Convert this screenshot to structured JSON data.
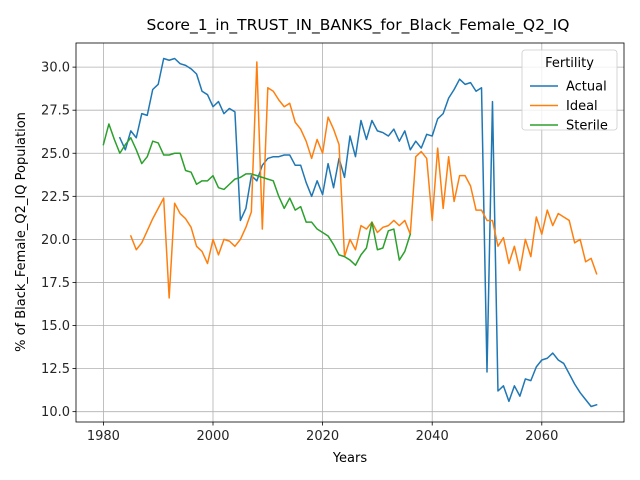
{
  "chart_data": {
    "type": "line",
    "title": "Score_1_in_TRUST_IN_BANKS_for_Black_Female_Q2_IQ",
    "xlabel": "Years",
    "ylabel": "% of Black_Female_Q2_IQ Population",
    "xlim": [
      1975,
      2075
    ],
    "ylim": [
      9.4,
      31.4
    ],
    "x_ticks": [
      1980,
      2000,
      2020,
      2040,
      2060
    ],
    "y_ticks": [
      10.0,
      12.5,
      15.0,
      17.5,
      20.0,
      22.5,
      25.0,
      27.5,
      30.0
    ],
    "grid": true,
    "legend": {
      "title": "Fertility",
      "placement": "top-right"
    },
    "series": [
      {
        "name": "Actual",
        "color": "#1f77b4",
        "points": [
          [
            1983,
            25.9
          ],
          [
            1984,
            25.2
          ],
          [
            1985,
            26.3
          ],
          [
            1986,
            25.9
          ],
          [
            1987,
            27.3
          ],
          [
            1988,
            27.2
          ],
          [
            1989,
            28.7
          ],
          [
            1990,
            29.0
          ],
          [
            1991,
            30.5
          ],
          [
            1992,
            30.4
          ],
          [
            1993,
            30.5
          ],
          [
            1994,
            30.2
          ],
          [
            1995,
            30.1
          ],
          [
            1996,
            29.9
          ],
          [
            1997,
            29.6
          ],
          [
            1998,
            28.6
          ],
          [
            1999,
            28.4
          ],
          [
            2000,
            27.7
          ],
          [
            2001,
            28.0
          ],
          [
            2002,
            27.3
          ],
          [
            2003,
            27.6
          ],
          [
            2004,
            27.4
          ],
          [
            2005,
            21.1
          ],
          [
            2006,
            21.8
          ],
          [
            2007,
            23.7
          ],
          [
            2008,
            23.4
          ],
          [
            2009,
            24.3
          ],
          [
            2010,
            24.7
          ],
          [
            2011,
            24.8
          ],
          [
            2012,
            24.8
          ],
          [
            2013,
            24.9
          ],
          [
            2014,
            24.9
          ],
          [
            2015,
            24.3
          ],
          [
            2016,
            24.3
          ],
          [
            2017,
            23.3
          ],
          [
            2018,
            22.5
          ],
          [
            2019,
            23.4
          ],
          [
            2020,
            22.6
          ],
          [
            2021,
            24.4
          ],
          [
            2022,
            23.0
          ],
          [
            2023,
            24.7
          ],
          [
            2024,
            23.6
          ],
          [
            2025,
            26.0
          ],
          [
            2026,
            24.8
          ],
          [
            2027,
            26.9
          ],
          [
            2028,
            25.8
          ],
          [
            2029,
            26.9
          ],
          [
            2030,
            26.3
          ],
          [
            2031,
            26.2
          ],
          [
            2032,
            26.0
          ],
          [
            2033,
            26.4
          ],
          [
            2034,
            25.7
          ],
          [
            2035,
            26.3
          ],
          [
            2036,
            25.2
          ],
          [
            2037,
            25.7
          ],
          [
            2038,
            25.3
          ],
          [
            2039,
            26.1
          ],
          [
            2040,
            26.0
          ],
          [
            2041,
            27.0
          ],
          [
            2042,
            27.3
          ],
          [
            2043,
            28.2
          ],
          [
            2044,
            28.7
          ],
          [
            2045,
            29.3
          ],
          [
            2046,
            29.0
          ],
          [
            2047,
            29.1
          ],
          [
            2048,
            28.6
          ],
          [
            2049,
            28.8
          ],
          [
            2050,
            12.3
          ],
          [
            2051,
            28.0
          ],
          [
            2052,
            11.2
          ],
          [
            2053,
            11.5
          ],
          [
            2054,
            10.6
          ],
          [
            2055,
            11.5
          ],
          [
            2056,
            10.9
          ],
          [
            2057,
            11.9
          ],
          [
            2058,
            11.8
          ],
          [
            2059,
            12.6
          ],
          [
            2060,
            13.0
          ],
          [
            2061,
            13.1
          ],
          [
            2062,
            13.4
          ],
          [
            2063,
            13.0
          ],
          [
            2064,
            12.8
          ],
          [
            2065,
            12.2
          ],
          [
            2066,
            11.6
          ],
          [
            2067,
            11.1
          ],
          [
            2068,
            10.7
          ],
          [
            2069,
            10.3
          ],
          [
            2070,
            10.4
          ]
        ]
      },
      {
        "name": "Ideal",
        "color": "#ff7f0e",
        "points": [
          [
            1985,
            20.2
          ],
          [
            1986,
            19.4
          ],
          [
            1987,
            19.8
          ],
          [
            1988,
            20.5
          ],
          [
            1989,
            21.2
          ],
          [
            1990,
            21.8
          ],
          [
            1991,
            22.4
          ],
          [
            1992,
            16.6
          ],
          [
            1993,
            22.1
          ],
          [
            1994,
            21.5
          ],
          [
            1995,
            21.2
          ],
          [
            1996,
            20.7
          ],
          [
            1997,
            19.6
          ],
          [
            1998,
            19.3
          ],
          [
            1999,
            18.6
          ],
          [
            2000,
            20.0
          ],
          [
            2001,
            19.1
          ],
          [
            2002,
            20.0
          ],
          [
            2003,
            19.9
          ],
          [
            2004,
            19.6
          ],
          [
            2005,
            20.0
          ],
          [
            2006,
            20.7
          ],
          [
            2007,
            21.6
          ],
          [
            2008,
            30.3
          ],
          [
            2009,
            20.6
          ],
          [
            2010,
            28.8
          ],
          [
            2011,
            28.6
          ],
          [
            2012,
            28.1
          ],
          [
            2013,
            27.7
          ],
          [
            2014,
            27.9
          ],
          [
            2015,
            26.8
          ],
          [
            2016,
            26.4
          ],
          [
            2017,
            25.7
          ],
          [
            2018,
            24.7
          ],
          [
            2019,
            25.8
          ],
          [
            2020,
            25.0
          ],
          [
            2021,
            27.1
          ],
          [
            2022,
            26.4
          ],
          [
            2023,
            25.5
          ],
          [
            2024,
            19.0
          ],
          [
            2025,
            20.0
          ],
          [
            2026,
            19.4
          ],
          [
            2027,
            20.8
          ],
          [
            2028,
            20.6
          ],
          [
            2029,
            21.0
          ],
          [
            2030,
            20.4
          ],
          [
            2031,
            20.7
          ],
          [
            2032,
            20.8
          ],
          [
            2033,
            21.1
          ],
          [
            2034,
            20.8
          ],
          [
            2035,
            21.1
          ],
          [
            2036,
            20.3
          ],
          [
            2037,
            24.8
          ],
          [
            2038,
            25.1
          ],
          [
            2039,
            24.7
          ],
          [
            2040,
            21.1
          ],
          [
            2041,
            25.3
          ],
          [
            2042,
            21.8
          ],
          [
            2043,
            24.8
          ],
          [
            2044,
            22.2
          ],
          [
            2045,
            23.7
          ],
          [
            2046,
            23.7
          ],
          [
            2047,
            23.1
          ],
          [
            2048,
            21.7
          ],
          [
            2049,
            21.7
          ],
          [
            2050,
            21.1
          ],
          [
            2051,
            21.1
          ],
          [
            2052,
            19.6
          ],
          [
            2053,
            20.1
          ],
          [
            2054,
            18.6
          ],
          [
            2055,
            19.6
          ],
          [
            2056,
            18.2
          ],
          [
            2057,
            20.0
          ],
          [
            2058,
            19.0
          ],
          [
            2059,
            21.3
          ],
          [
            2060,
            20.3
          ],
          [
            2061,
            21.7
          ],
          [
            2062,
            20.8
          ],
          [
            2063,
            21.5
          ],
          [
            2064,
            21.3
          ],
          [
            2065,
            21.1
          ],
          [
            2066,
            19.8
          ],
          [
            2067,
            20.0
          ],
          [
            2068,
            18.7
          ],
          [
            2069,
            18.9
          ],
          [
            2070,
            18.0
          ]
        ]
      },
      {
        "name": "Sterile",
        "color": "#2ca02c",
        "points": [
          [
            1980,
            25.5
          ],
          [
            1981,
            26.7
          ],
          [
            1982,
            25.8
          ],
          [
            1983,
            25.0
          ],
          [
            1984,
            25.5
          ],
          [
            1985,
            25.9
          ],
          [
            1986,
            25.2
          ],
          [
            1987,
            24.4
          ],
          [
            1988,
            24.8
          ],
          [
            1989,
            25.7
          ],
          [
            1990,
            25.6
          ],
          [
            1991,
            24.9
          ],
          [
            1992,
            24.9
          ],
          [
            1993,
            25.0
          ],
          [
            1994,
            25.0
          ],
          [
            1995,
            24.0
          ],
          [
            1996,
            23.9
          ],
          [
            1997,
            23.2
          ],
          [
            1998,
            23.4
          ],
          [
            1999,
            23.4
          ],
          [
            2000,
            23.7
          ],
          [
            2001,
            23.0
          ],
          [
            2002,
            22.9
          ],
          [
            2003,
            23.2
          ],
          [
            2004,
            23.5
          ],
          [
            2005,
            23.6
          ],
          [
            2006,
            23.8
          ],
          [
            2007,
            23.8
          ],
          [
            2008,
            23.7
          ],
          [
            2009,
            23.6
          ],
          [
            2010,
            23.5
          ],
          [
            2011,
            23.4
          ],
          [
            2012,
            22.5
          ],
          [
            2013,
            21.8
          ],
          [
            2014,
            22.4
          ],
          [
            2015,
            21.7
          ],
          [
            2016,
            21.9
          ],
          [
            2017,
            21.0
          ],
          [
            2018,
            21.0
          ],
          [
            2019,
            20.6
          ],
          [
            2020,
            20.4
          ],
          [
            2021,
            20.2
          ],
          [
            2022,
            19.7
          ],
          [
            2023,
            19.1
          ],
          [
            2024,
            19.0
          ],
          [
            2025,
            18.8
          ],
          [
            2026,
            18.5
          ],
          [
            2027,
            19.1
          ],
          [
            2028,
            19.5
          ],
          [
            2029,
            21.0
          ],
          [
            2030,
            19.4
          ],
          [
            2031,
            19.5
          ],
          [
            2032,
            20.5
          ],
          [
            2033,
            20.6
          ],
          [
            2034,
            18.8
          ],
          [
            2035,
            19.3
          ],
          [
            2036,
            20.3
          ]
        ]
      }
    ]
  }
}
